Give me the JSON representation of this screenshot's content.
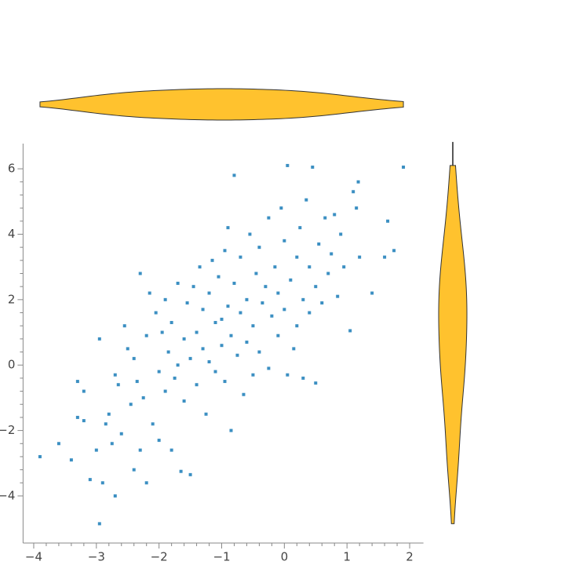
{
  "chart_data": {
    "type": "scatter",
    "x": [
      -3.9,
      -3.6,
      -3.4,
      -3.3,
      -3.2,
      -3.3,
      -3.2,
      -3.1,
      -3.0,
      -2.95,
      -2.9,
      -2.95,
      -2.85,
      -2.8,
      -2.7,
      -2.75,
      -2.7,
      -2.65,
      -2.6,
      -2.55,
      -2.5,
      -2.45,
      -2.4,
      -2.4,
      -2.35,
      -2.3,
      -2.3,
      -2.25,
      -2.2,
      -2.2,
      -2.15,
      -2.1,
      -2.05,
      -2.0,
      -2.0,
      -1.95,
      -1.9,
      -1.9,
      -1.85,
      -1.8,
      -1.8,
      -1.75,
      -1.7,
      -1.7,
      -1.65,
      -1.6,
      -1.6,
      -1.55,
      -1.5,
      -1.5,
      -1.45,
      -1.4,
      -1.4,
      -1.35,
      -1.3,
      -1.3,
      -1.25,
      -1.2,
      -1.2,
      -1.15,
      -1.1,
      -1.1,
      -1.05,
      -1.0,
      -1.0,
      -0.95,
      -0.95,
      -0.9,
      -0.9,
      -0.85,
      -0.85,
      -0.8,
      -0.8,
      -0.75,
      -0.7,
      -0.7,
      -0.65,
      -0.6,
      -0.6,
      -0.55,
      -0.5,
      -0.5,
      -0.45,
      -0.4,
      -0.4,
      -0.35,
      -0.3,
      -0.25,
      -0.25,
      -0.2,
      -0.15,
      -0.1,
      -0.1,
      -0.05,
      0.0,
      0.0,
      0.05,
      0.05,
      0.1,
      0.15,
      0.2,
      0.2,
      0.25,
      0.3,
      0.3,
      0.35,
      0.4,
      0.4,
      0.45,
      0.5,
      0.5,
      0.55,
      0.6,
      0.65,
      0.7,
      0.75,
      0.8,
      0.85,
      0.9,
      0.95,
      1.05,
      1.1,
      1.15,
      1.18,
      1.2,
      1.4,
      1.6,
      1.65,
      1.75,
      1.9
    ],
    "values": [
      -2.8,
      -2.4,
      -2.9,
      -1.6,
      -1.7,
      -0.5,
      -0.8,
      -3.5,
      -2.6,
      -4.85,
      -3.6,
      0.8,
      -1.8,
      -1.5,
      -4.0,
      -2.4,
      -0.3,
      -0.6,
      -2.1,
      1.2,
      0.5,
      -1.2,
      -3.2,
      0.2,
      -0.5,
      2.8,
      -2.6,
      -1.0,
      -3.6,
      0.9,
      2.2,
      -1.8,
      1.6,
      -0.2,
      -2.3,
      1.0,
      -0.8,
      2.0,
      0.4,
      -2.6,
      1.3,
      -0.4,
      0.0,
      2.5,
      -3.25,
      -1.1,
      0.8,
      1.9,
      -3.35,
      0.2,
      2.4,
      -0.6,
      1.0,
      3.0,
      0.5,
      1.7,
      -1.5,
      2.2,
      0.1,
      3.2,
      1.3,
      -0.2,
      2.7,
      1.4,
      0.6,
      3.5,
      -0.5,
      1.8,
      4.2,
      -2.0,
      0.9,
      5.8,
      2.5,
      0.3,
      1.6,
      3.3,
      -0.9,
      2.0,
      0.7,
      4.0,
      1.2,
      -0.3,
      2.8,
      3.6,
      0.4,
      1.9,
      2.4,
      4.5,
      -0.1,
      1.5,
      3.0,
      0.9,
      2.2,
      4.8,
      1.7,
      3.8,
      6.1,
      -0.3,
      2.6,
      0.5,
      3.3,
      1.2,
      4.2,
      2.0,
      -0.4,
      5.05,
      3.0,
      1.6,
      6.05,
      2.4,
      -0.55,
      3.7,
      1.9,
      4.5,
      2.8,
      3.4,
      4.6,
      2.1,
      4.0,
      3.0,
      1.05,
      5.3,
      4.8,
      5.6,
      3.3,
      2.2,
      3.3,
      4.4,
      3.5,
      6.05
    ],
    "color": "#3b8fc2",
    "violin_color": "#ffc22e",
    "xlim": [
      -4.17,
      2.22
    ],
    "ylim": [
      -5.44,
      6.77
    ],
    "xticks": [
      {
        "value": -4,
        "label": "−4"
      },
      {
        "value": -3,
        "label": "−3"
      },
      {
        "value": -2,
        "label": "−2"
      },
      {
        "value": -1,
        "label": "−1"
      },
      0,
      1,
      2
    ],
    "yticks": [
      {
        "value": -4,
        "label": "−4"
      },
      {
        "value": -2,
        "label": "−2"
      },
      0,
      2,
      4,
      6
    ]
  }
}
